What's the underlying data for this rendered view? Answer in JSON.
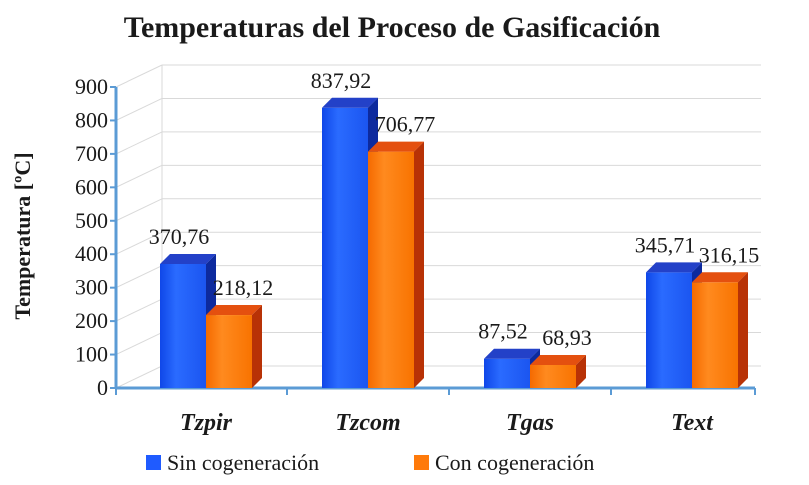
{
  "chart_data": {
    "type": "bar",
    "title": "Temperaturas del Proceso de Gasificación",
    "xlabel": "",
    "ylabel": "Temperatura [ºC]",
    "ylim": [
      0,
      900
    ],
    "yticks": [
      0,
      100,
      200,
      300,
      400,
      500,
      600,
      700,
      800,
      900
    ],
    "categories": [
      "Tzpir",
      "Tzcom",
      "Tgas",
      "Text"
    ],
    "series": [
      {
        "name": "Sin cogeneración",
        "values": [
          370.76,
          837.92,
          87.52,
          345.71
        ],
        "labels": [
          "370,76",
          "837,92",
          "87,52",
          "345,71"
        ],
        "color": "#1f5bff"
      },
      {
        "name": "Con cogeneración",
        "values": [
          218.12,
          706.77,
          68.93,
          316.15
        ],
        "labels": [
          "218,12",
          "706,77",
          "68,93",
          "316,15"
        ],
        "color": "#ff7a0a"
      }
    ],
    "grid": true,
    "legend": "bottom"
  }
}
